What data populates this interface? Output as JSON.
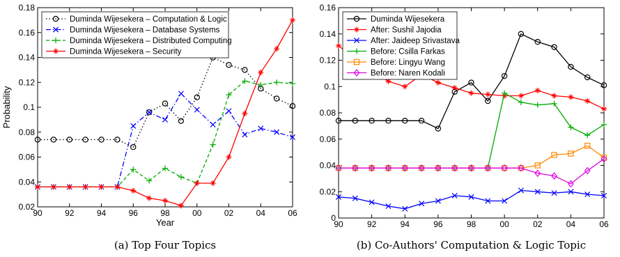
{
  "chart_data": [
    {
      "type": "line",
      "caption": "(a) Top Four Topics",
      "xlabel": "Year",
      "ylabel": "Probability",
      "xlim": [
        1990,
        2006
      ],
      "ylim": [
        0.02,
        0.18
      ],
      "x": [
        1990,
        1991,
        1992,
        1993,
        1994,
        1995,
        1996,
        1997,
        1998,
        1999,
        2000,
        2001,
        2002,
        2003,
        2004,
        2005,
        2006
      ],
      "x_tick_labels": [
        "90",
        "92",
        "94",
        "96",
        "98",
        "00",
        "02",
        "04",
        "06"
      ],
      "y_tick_labels": [
        "0.02",
        "0.04",
        "0.06",
        "0.08",
        "0.1",
        "0.12",
        "0.14",
        "0.16",
        "0.18"
      ],
      "grid": false,
      "legend_position": "top-left",
      "series": [
        {
          "name": "Duminda Wijesekera – Computation & Logic",
          "color": "#000000",
          "line": "dotted",
          "marker": "circle",
          "values": [
            0.074,
            0.074,
            0.074,
            0.074,
            0.074,
            0.074,
            0.068,
            0.096,
            0.103,
            0.089,
            0.108,
            0.14,
            0.134,
            0.13,
            0.115,
            0.107,
            0.101
          ]
        },
        {
          "name": "Duminda Wijesekera – Database Systems",
          "color": "#0000ff",
          "line": "dashdot",
          "marker": "x",
          "values": [
            0.036,
            0.036,
            0.036,
            0.036,
            0.036,
            0.036,
            0.085,
            0.096,
            0.09,
            0.111,
            0.098,
            0.086,
            0.097,
            0.078,
            0.083,
            0.08,
            0.076
          ]
        },
        {
          "name": "Duminda Wijesekera – Distributed Computing",
          "color": "#00aa00",
          "line": "dashed",
          "marker": "plus",
          "values": [
            0.036,
            0.036,
            0.036,
            0.036,
            0.036,
            0.036,
            0.05,
            0.041,
            0.051,
            0.044,
            0.039,
            0.07,
            0.11,
            0.121,
            0.118,
            0.12,
            0.119
          ]
        },
        {
          "name": "Duminda Wijesekera – Security",
          "color": "#ff0000",
          "line": "solid",
          "marker": "star",
          "values": [
            0.036,
            0.036,
            0.036,
            0.036,
            0.036,
            0.036,
            0.033,
            0.027,
            0.025,
            0.021,
            0.039,
            0.039,
            0.06,
            0.095,
            0.128,
            0.147,
            0.17
          ]
        }
      ]
    },
    {
      "type": "line",
      "caption": "(b) Co-Authors' Computation & Logic Topic",
      "xlabel": "",
      "ylabel": "",
      "xlim": [
        1990,
        2006
      ],
      "ylim": [
        0,
        0.16
      ],
      "x": [
        1990,
        1991,
        1992,
        1993,
        1994,
        1995,
        1996,
        1997,
        1998,
        1999,
        2000,
        2001,
        2002,
        2003,
        2004,
        2005,
        2006
      ],
      "x_tick_labels": [
        "90",
        "92",
        "94",
        "96",
        "98",
        "00",
        "02",
        "04",
        "06"
      ],
      "y_tick_labels": [
        "0",
        "0.02",
        "0.04",
        "0.06",
        "0.08",
        "0.1",
        "0.12",
        "0.14",
        "0.16"
      ],
      "grid": false,
      "legend_position": "top-left",
      "series": [
        {
          "name": "Duminda Wijesekera",
          "color": "#000000",
          "line": "solid",
          "marker": "circle",
          "values": [
            0.074,
            0.074,
            0.074,
            0.074,
            0.074,
            0.074,
            0.068,
            0.096,
            0.103,
            0.089,
            0.108,
            0.14,
            0.134,
            0.13,
            0.115,
            0.107,
            0.101
          ]
        },
        {
          "name": "After: Sushil Jajodia",
          "color": "#ff0000",
          "line": "solid",
          "marker": "star",
          "values": [
            0.131,
            0.121,
            0.113,
            0.104,
            0.1,
            0.109,
            0.103,
            0.099,
            0.095,
            0.094,
            0.093,
            0.093,
            0.097,
            0.093,
            0.092,
            0.089,
            0.083
          ]
        },
        {
          "name": "After: Jaideep Srivastava",
          "color": "#0000ff",
          "line": "solid",
          "marker": "x",
          "values": [
            0.016,
            0.015,
            0.012,
            0.009,
            0.007,
            0.011,
            0.013,
            0.017,
            0.016,
            0.013,
            0.013,
            0.021,
            0.02,
            0.019,
            0.02,
            0.018,
            0.017
          ]
        },
        {
          "name": "Before: Csilla Farkas",
          "color": "#00aa00",
          "line": "solid",
          "marker": "plus",
          "values": [
            0.038,
            0.038,
            0.038,
            0.038,
            0.038,
            0.038,
            0.038,
            0.038,
            0.038,
            0.038,
            0.095,
            0.088,
            0.086,
            0.087,
            0.069,
            0.063,
            0.071
          ]
        },
        {
          "name": "Before: Lingyu Wang",
          "color": "#ff8800",
          "line": "solid",
          "marker": "square",
          "values": [
            0.038,
            0.038,
            0.038,
            0.038,
            0.038,
            0.038,
            0.038,
            0.038,
            0.038,
            0.038,
            0.038,
            0.038,
            0.04,
            0.048,
            0.049,
            0.055,
            0.046
          ]
        },
        {
          "name": "Before: Naren Kodali",
          "color": "#dd00dd",
          "line": "solid",
          "marker": "diamond",
          "values": [
            0.038,
            0.038,
            0.038,
            0.038,
            0.038,
            0.038,
            0.038,
            0.038,
            0.038,
            0.038,
            0.038,
            0.038,
            0.034,
            0.032,
            0.026,
            0.036,
            0.045
          ]
        }
      ]
    }
  ]
}
